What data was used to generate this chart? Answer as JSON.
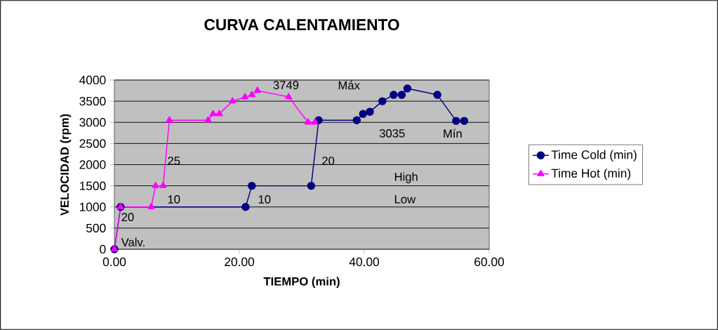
{
  "chart_data": {
    "type": "line",
    "title": "CURVA CALENTAMIENTO",
    "xlabel": "TIEMPO (min)",
    "ylabel": "VELOCIDAD (rpm)",
    "xlim": [
      0,
      60
    ],
    "ylim": [
      0,
      4000
    ],
    "xticks": [
      {
        "value": 0,
        "label": "0.00"
      },
      {
        "value": 20,
        "label": "20.00"
      },
      {
        "value": 40,
        "label": "40.00"
      },
      {
        "value": 60,
        "label": "60.00"
      }
    ],
    "yticks": [
      0,
      500,
      1000,
      1500,
      2000,
      2500,
      3000,
      3500,
      4000
    ],
    "grid": "y",
    "legend": "right",
    "line_style": "solid",
    "series": [
      {
        "name": "Time Cold (min)",
        "color": "#000080",
        "marker": "circle",
        "x": [
          0,
          1,
          21,
          22,
          31.5,
          32.7,
          38.8,
          39.8,
          40.9,
          42.9,
          44.7,
          46,
          46.9,
          51.7,
          54.7,
          56
        ],
        "values": [
          0,
          1000,
          1000,
          1500,
          1500,
          3050,
          3050,
          3200,
          3250,
          3500,
          3650,
          3650,
          3800,
          3650,
          3035,
          3035
        ]
      },
      {
        "name": "Time Hot (min)",
        "color": "#ff00ff",
        "marker": "triangle",
        "x": [
          0,
          1,
          5.9,
          6.6,
          7.8,
          8.8,
          15,
          15.8,
          16.8,
          18.9,
          20.9,
          22,
          22.9,
          27.9,
          31,
          32.1
        ],
        "values": [
          0,
          1000,
          1000,
          1500,
          1500,
          3050,
          3050,
          3200,
          3200,
          3500,
          3600,
          3650,
          3749,
          3600,
          3000,
          3000
        ]
      }
    ],
    "annotations": [
      "Valv.",
      "20",
      "10",
      "25",
      "10",
      "3749",
      "Máx",
      "20",
      "3035",
      "Mín",
      "High",
      "Low"
    ]
  }
}
